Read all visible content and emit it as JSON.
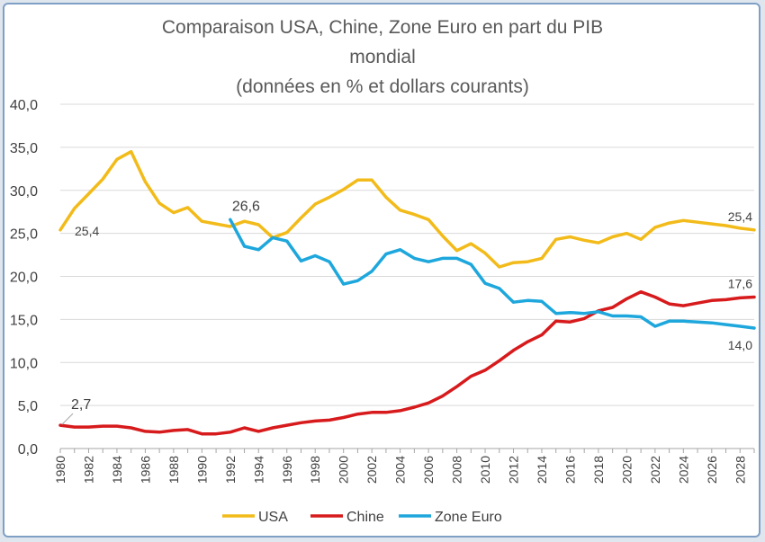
{
  "chart_data": {
    "type": "line",
    "title_lines": [
      "Comparaison USA, Chine, Zone Euro en part du PIB",
      "mondial",
      "(données en % et dollars courants)"
    ],
    "ylim": [
      0,
      40
    ],
    "yticks": [
      "0,0",
      "5,0",
      "10,0",
      "15,0",
      "20,0",
      "25,0",
      "30,0",
      "35,0",
      "40,0"
    ],
    "xlim": [
      1980,
      2029
    ],
    "xticks": [
      "1980",
      "1982",
      "1984",
      "1986",
      "1988",
      "1990",
      "1992",
      "1994",
      "1996",
      "1998",
      "2000",
      "2002",
      "2004",
      "2006",
      "2008",
      "2010",
      "2012",
      "2014",
      "2016",
      "2018",
      "2020",
      "2022",
      "2024",
      "2026",
      "2028"
    ],
    "grid": true,
    "legend_position": "bottom",
    "series": [
      {
        "name": "USA",
        "color": "#f2bb1a",
        "x": [
          1980,
          1981,
          1982,
          1983,
          1984,
          1985,
          1986,
          1987,
          1988,
          1989,
          1990,
          1991,
          1992,
          1993,
          1994,
          1995,
          1996,
          1997,
          1998,
          1999,
          2000,
          2001,
          2002,
          2003,
          2004,
          2005,
          2006,
          2007,
          2008,
          2009,
          2010,
          2011,
          2012,
          2013,
          2014,
          2015,
          2016,
          2017,
          2018,
          2019,
          2020,
          2021,
          2022,
          2023,
          2024,
          2025,
          2026,
          2027,
          2028,
          2029
        ],
        "values": [
          25.4,
          27.9,
          29.6,
          31.3,
          33.6,
          34.5,
          31.0,
          28.5,
          27.4,
          28.0,
          26.4,
          26.1,
          25.8,
          26.4,
          26.0,
          24.5,
          25.1,
          26.8,
          28.4,
          29.2,
          30.1,
          31.2,
          31.2,
          29.2,
          27.7,
          27.2,
          26.6,
          24.7,
          23.0,
          23.8,
          22.7,
          21.1,
          21.6,
          21.7,
          22.1,
          24.3,
          24.6,
          24.2,
          23.9,
          24.6,
          25.0,
          24.3,
          25.7,
          26.2,
          26.5,
          26.3,
          26.1,
          25.9,
          25.6,
          25.4
        ]
      },
      {
        "name": "Chine",
        "color": "#d71a1c",
        "x": [
          1980,
          1981,
          1982,
          1983,
          1984,
          1985,
          1986,
          1987,
          1988,
          1989,
          1990,
          1991,
          1992,
          1993,
          1994,
          1995,
          1996,
          1997,
          1998,
          1999,
          2000,
          2001,
          2002,
          2003,
          2004,
          2005,
          2006,
          2007,
          2008,
          2009,
          2010,
          2011,
          2012,
          2013,
          2014,
          2015,
          2016,
          2017,
          2018,
          2019,
          2020,
          2021,
          2022,
          2023,
          2024,
          2025,
          2026,
          2027,
          2028,
          2029
        ],
        "values": [
          2.7,
          2.5,
          2.5,
          2.6,
          2.6,
          2.4,
          2.0,
          1.9,
          2.1,
          2.2,
          1.7,
          1.7,
          1.9,
          2.4,
          2.0,
          2.4,
          2.7,
          3.0,
          3.2,
          3.3,
          3.6,
          4.0,
          4.2,
          4.2,
          4.4,
          4.8,
          5.3,
          6.1,
          7.2,
          8.4,
          9.1,
          10.2,
          11.4,
          12.4,
          13.2,
          14.8,
          14.7,
          15.1,
          16.0,
          16.4,
          17.4,
          18.2,
          17.6,
          16.8,
          16.6,
          16.9,
          17.2,
          17.3,
          17.5,
          17.6
        ]
      },
      {
        "name": "Zone Euro",
        "color": "#1ea7dc",
        "x": [
          1992,
          1993,
          1994,
          1995,
          1996,
          1997,
          1998,
          1999,
          2000,
          2001,
          2002,
          2003,
          2004,
          2005,
          2006,
          2007,
          2008,
          2009,
          2010,
          2011,
          2012,
          2013,
          2014,
          2015,
          2016,
          2017,
          2018,
          2019,
          2020,
          2021,
          2022,
          2023,
          2024,
          2025,
          2026,
          2027,
          2028,
          2029
        ],
        "values": [
          26.6,
          23.5,
          23.1,
          24.5,
          24.1,
          21.8,
          22.4,
          21.7,
          19.1,
          19.5,
          20.6,
          22.6,
          23.1,
          22.1,
          21.7,
          22.1,
          22.1,
          21.4,
          19.2,
          18.6,
          17.0,
          17.2,
          17.1,
          15.7,
          15.8,
          15.7,
          15.9,
          15.4,
          15.4,
          15.3,
          14.2,
          14.8,
          14.8,
          14.7,
          14.6,
          14.4,
          14.2,
          14.0
        ]
      }
    ],
    "annotations": [
      {
        "text": "25,4",
        "series": "USA",
        "x": 1980
      },
      {
        "text": "2,7",
        "series": "Chine",
        "x": 1980
      },
      {
        "text": "26,6",
        "series": "Zone Euro",
        "x": 1992
      },
      {
        "text": "25,4",
        "series": "USA",
        "x": 2029
      },
      {
        "text": "17,6",
        "series": "Chine",
        "x": 2029
      },
      {
        "text": "14,0",
        "series": "Zone Euro",
        "x": 2029
      }
    ]
  }
}
